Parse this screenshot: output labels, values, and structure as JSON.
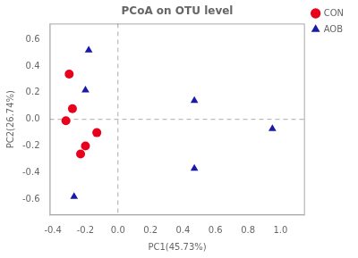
{
  "chart_data": {
    "type": "scatter",
    "title": "PCoA on OTU level",
    "xlabel": "PC1(45.73%)",
    "ylabel": "PC2(26.74%)",
    "series": [
      {
        "name": "CON",
        "color": "#e8001c",
        "marker": "circle",
        "x": [
          -0.3,
          -0.28,
          -0.32,
          -0.2,
          -0.23,
          -0.13
        ],
        "values": [
          0.34,
          0.08,
          -0.01,
          -0.2,
          -0.26,
          -0.1
        ]
      },
      {
        "name": "AOB",
        "color": "#1a1aaa",
        "marker": "triangle",
        "x": [
          -0.18,
          -0.2,
          -0.27,
          0.47,
          0.47,
          0.95
        ],
        "values": [
          0.52,
          0.22,
          -0.58,
          0.14,
          -0.37,
          -0.07
        ]
      }
    ],
    "hlines": [
      0
    ],
    "vlines": [
      0
    ],
    "xlim": [
      -0.42,
      1.15
    ],
    "ylim": [
      -0.72,
      0.72
    ],
    "xticks": [
      -0.4,
      -0.2,
      {
        "value": 0,
        "label": "0.0"
      },
      0.2,
      0.4,
      0.6,
      0.8,
      {
        "value": 1,
        "label": "1.0"
      }
    ],
    "yticks": [
      -0.6,
      -0.4,
      -0.2,
      {
        "value": 0,
        "label": "0.0"
      },
      0.2,
      0.4,
      0.6
    ],
    "grid": false,
    "legend": "right"
  }
}
